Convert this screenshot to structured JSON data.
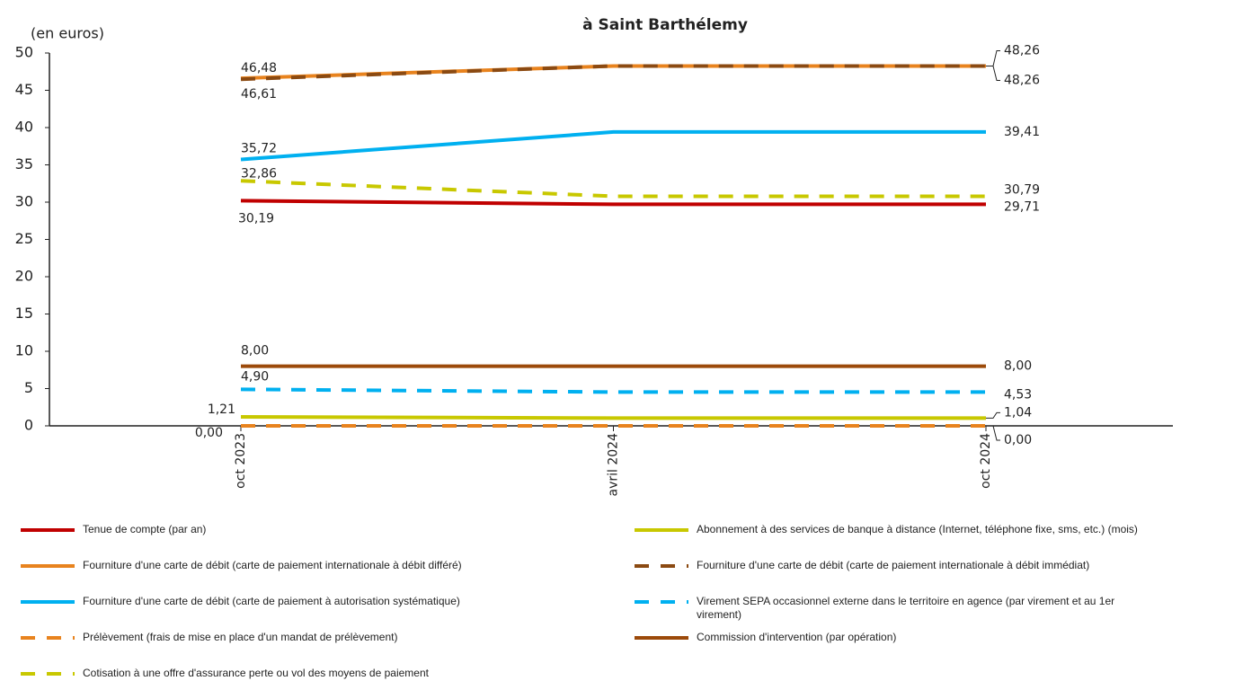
{
  "chart_data": {
    "type": "line",
    "title": "à Saint Barthélemy",
    "y_label": "(en euros)",
    "categories": [
      "oct 2023",
      "avril 2024",
      "oct 2024"
    ],
    "ylim": [
      0,
      50
    ],
    "yticks": [
      0,
      5,
      10,
      15,
      20,
      25,
      30,
      35,
      40,
      45,
      50
    ],
    "grid": false,
    "series": [
      {
        "name": "Tenue de compte (par an)",
        "color": "#c00000",
        "dashed": false,
        "values": [
          30.19,
          29.71,
          29.71
        ],
        "value_labels": [
          "30,19",
          null,
          "29,71"
        ]
      },
      {
        "name": "Abonnement à des services de banque à distance (Internet, téléphone fixe, sms, etc.) (mois)",
        "color": "#c8c800",
        "dashed": false,
        "values": [
          1.21,
          1.04,
          1.04
        ],
        "value_labels": [
          "1,21",
          null,
          "1,04"
        ]
      },
      {
        "name": "Fourniture d'une carte de débit (carte de paiement internationale à débit différé)",
        "color": "#e8831e",
        "dashed": false,
        "values": [
          46.61,
          48.26,
          48.26
        ],
        "value_labels": [
          "46,61",
          null,
          "48,26"
        ]
      },
      {
        "name": "Fourniture d'une carte de débit (carte de paiement internationale à débit immédiat)",
        "color": "#8b4a12",
        "dashed": true,
        "values": [
          46.48,
          48.26,
          48.26
        ],
        "value_labels": [
          "46,48",
          null,
          "48,26"
        ]
      },
      {
        "name": "Fourniture d'une carte de débit (carte de paiement à autorisation systématique)",
        "color": "#00b0f0",
        "dashed": false,
        "values": [
          35.72,
          39.41,
          39.41
        ],
        "value_labels": [
          "35,72",
          null,
          "39,41"
        ]
      },
      {
        "name": "Virement SEPA occasionnel externe dans le territoire en agence (par virement et au 1er virement)",
        "color": "#00b0f0",
        "dashed": true,
        "values": [
          4.9,
          4.53,
          4.53
        ],
        "value_labels": [
          "4,90",
          null,
          "4,53"
        ]
      },
      {
        "name": "Prélèvement (frais de mise en place d'un mandat de prélèvement)",
        "color": "#e8831e",
        "dashed": true,
        "values": [
          0,
          0,
          0
        ],
        "value_labels": [
          "0,00",
          null,
          "0,00"
        ]
      },
      {
        "name": "Commission d'intervention (par opération)",
        "color": "#9c4a0a",
        "dashed": false,
        "values": [
          8,
          8,
          8
        ],
        "value_labels": [
          "8,00",
          null,
          "8,00"
        ]
      },
      {
        "name": "Cotisation à une offre d'assurance perte ou vol des moyens de paiement",
        "color": "#c8c800",
        "dashed": true,
        "values": [
          32.86,
          30.79,
          30.79
        ],
        "value_labels": [
          "32,86",
          null,
          "30,79"
        ]
      }
    ]
  }
}
